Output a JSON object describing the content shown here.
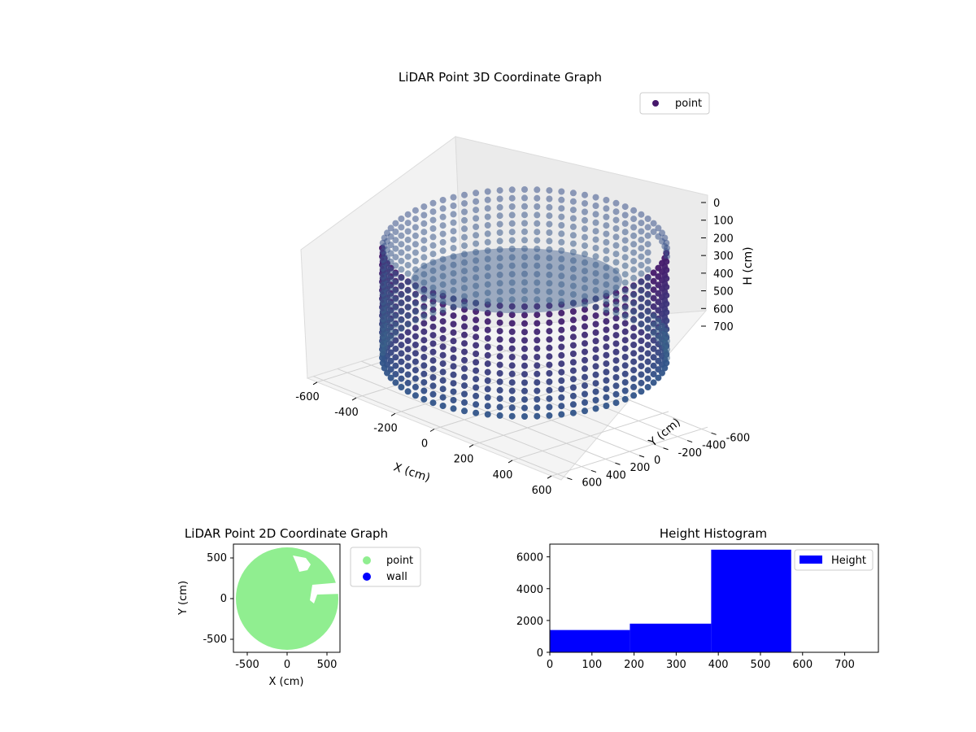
{
  "chart_data": [
    {
      "type": "scatter",
      "projection": "3d",
      "title": "LiDAR Point 3D Coordinate Graph",
      "xlabel": "X (cm)",
      "ylabel": "Y (cm)",
      "zlabel": "H (cm)",
      "xlim": [
        -650,
        650
      ],
      "ylim": [
        -650,
        650
      ],
      "zlim": [
        0,
        760
      ],
      "z_inverted": true,
      "xticks": [
        "-600",
        "-400",
        "-200",
        "0",
        "200",
        "400",
        "600"
      ],
      "yticks": [
        "-600",
        "-400",
        "-200",
        "0",
        "200",
        "400",
        "600"
      ],
      "zticks": [
        "0",
        "100",
        "200",
        "300",
        "400",
        "500",
        "600",
        "700"
      ],
      "legend": {
        "placement": "top-right",
        "entries": [
          "point"
        ]
      },
      "series": [
        {
          "name": "point",
          "color": "#46186b",
          "shape": "cylinder",
          "radius": 600,
          "height_range": [
            0,
            760
          ],
          "opening_angle_deg": [
            -30,
            25
          ]
        }
      ],
      "grid": true
    },
    {
      "type": "scatter",
      "title": "LiDAR Point 2D Coordinate Graph",
      "xlabel": "X (cm)",
      "ylabel": "Y (cm)",
      "xlim": [
        -650,
        650
      ],
      "ylim": [
        -650,
        650
      ],
      "xticks": [
        "-500",
        "0",
        "500"
      ],
      "yticks": [
        "500",
        "0",
        "-500"
      ],
      "legend": {
        "placement": "right",
        "entries": [
          "point",
          "wall"
        ]
      },
      "series": [
        {
          "name": "point",
          "color": "#90ee90",
          "shape": "disc",
          "radius": 610
        },
        {
          "name": "wall",
          "color": "#0000ff"
        }
      ]
    },
    {
      "type": "bar",
      "title": "Height Histogram",
      "xlabel": "",
      "ylabel": "",
      "xlim": [
        0,
        780
      ],
      "ylim": [
        0,
        6800
      ],
      "xticks": [
        "0",
        "100",
        "200",
        "300",
        "400",
        "500",
        "600",
        "700"
      ],
      "yticks": [
        "0",
        "2000",
        "4000",
        "6000"
      ],
      "legend": {
        "placement": "top-right",
        "entries": [
          "Height"
        ]
      },
      "bins": [
        {
          "start": 0,
          "end": 190,
          "value": 1400
        },
        {
          "start": 190,
          "end": 383,
          "value": 1800
        },
        {
          "start": 383,
          "end": 573,
          "value": 6450
        }
      ],
      "color": "#0000ff"
    }
  ]
}
